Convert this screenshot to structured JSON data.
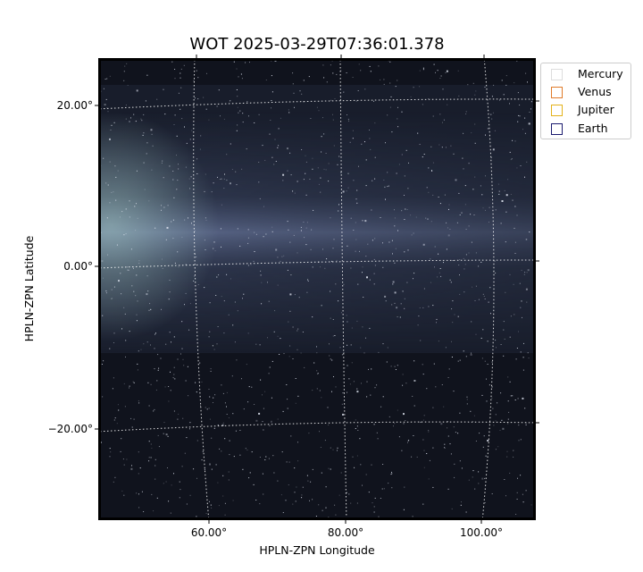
{
  "title": "WOT 2025-03-29T07:36:01.378",
  "axes": {
    "xlabel": "HPLN-ZPN Longitude",
    "ylabel": "HPLN-ZPN Latitude",
    "x_ticks": [
      "60.00°",
      "80.00°",
      "100.00°"
    ],
    "y_ticks": [
      "20.00°",
      "0.00°",
      "−20.00°"
    ]
  },
  "legend": [
    {
      "label": "Mercury",
      "color": "#dddddd"
    },
    {
      "label": "Venus",
      "color": "#e07b2a"
    },
    {
      "label": "Jupiter",
      "color": "#e3b21a"
    },
    {
      "label": "Earth",
      "color": "#1a1a6e"
    }
  ],
  "colors": {
    "background": "#0b0e16",
    "band": "#6f7da8",
    "band_left": "#8fb0b0",
    "grid": "#ffffff"
  }
}
